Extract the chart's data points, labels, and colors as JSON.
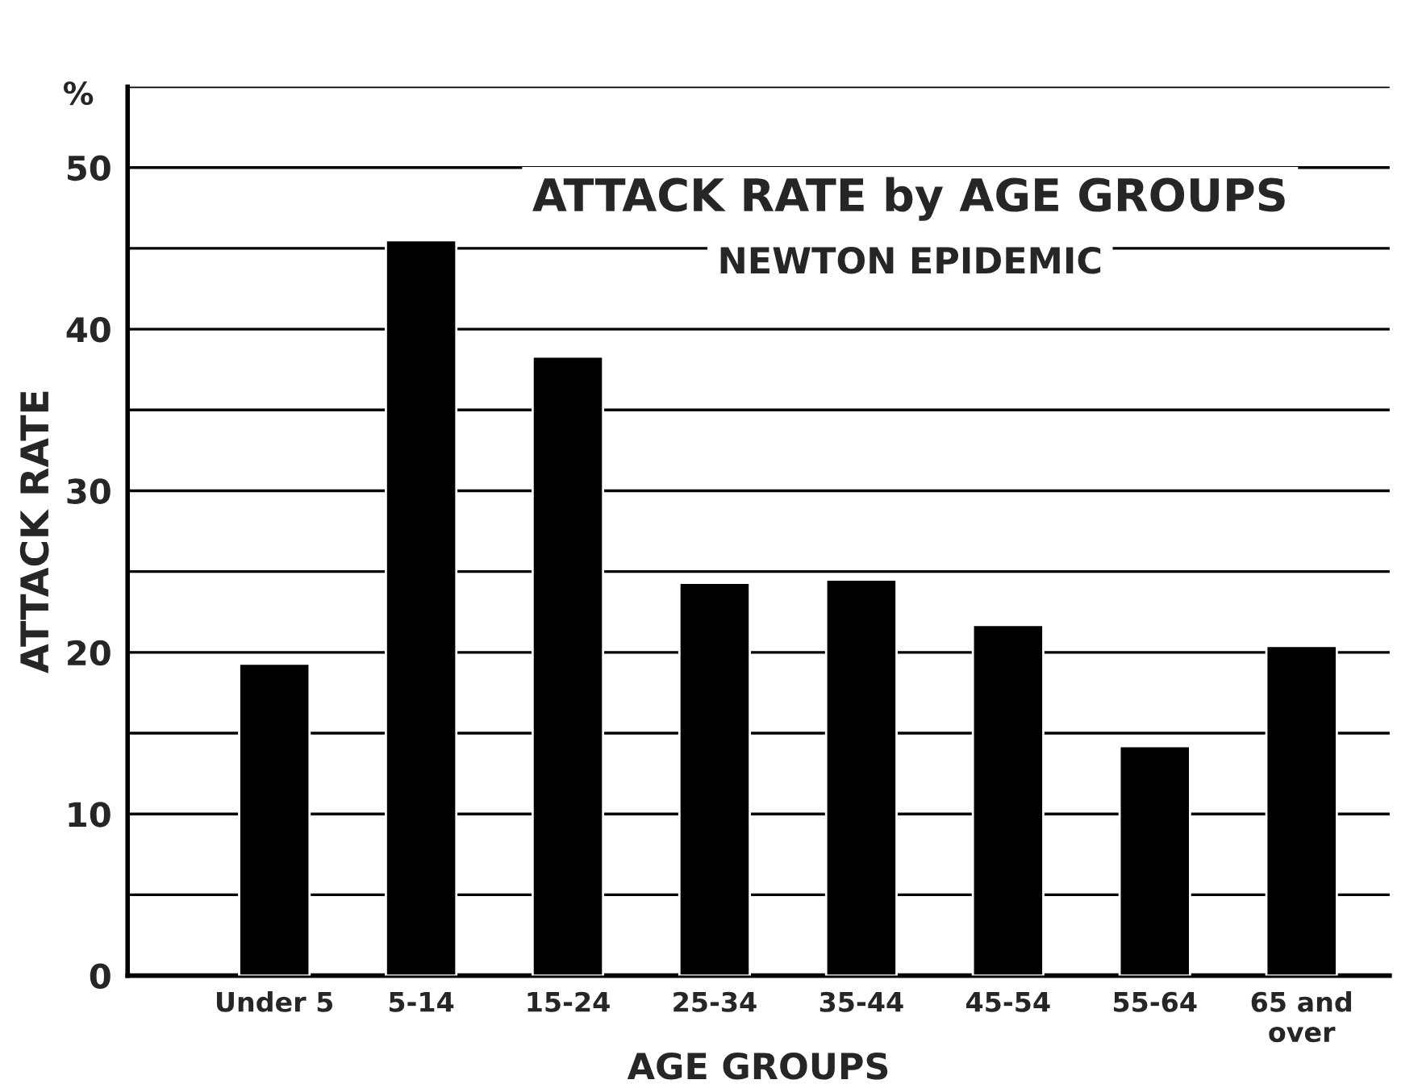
{
  "chart_data": {
    "type": "bar",
    "title": "ATTACK RATE by AGE GROUPS",
    "subtitle": "NEWTON EPIDEMIC",
    "xlabel": "AGE GROUPS",
    "ylabel": "ATTACK RATE",
    "annotations": [
      "%"
    ],
    "categories": [
      "Under 5",
      "5-14",
      "15-24",
      "25-34",
      "35-44",
      "45-54",
      "55-64",
      "65 and\nover"
    ],
    "values": [
      19.3,
      45.5,
      38.3,
      24.3,
      24.5,
      21.7,
      14.2,
      20.4
    ],
    "color": "#000000",
    "ylim": [
      0,
      55
    ],
    "yticks": [
      0,
      {
        "value": 5,
        "label": null
      },
      10,
      {
        "value": 15,
        "label": null
      },
      20,
      {
        "value": 25,
        "label": null
      },
      30,
      {
        "value": 35,
        "label": null
      },
      40,
      {
        "value": 45,
        "label": null
      },
      50,
      {
        "value": 55,
        "label": null
      }
    ],
    "grid": "y",
    "legend": false
  }
}
